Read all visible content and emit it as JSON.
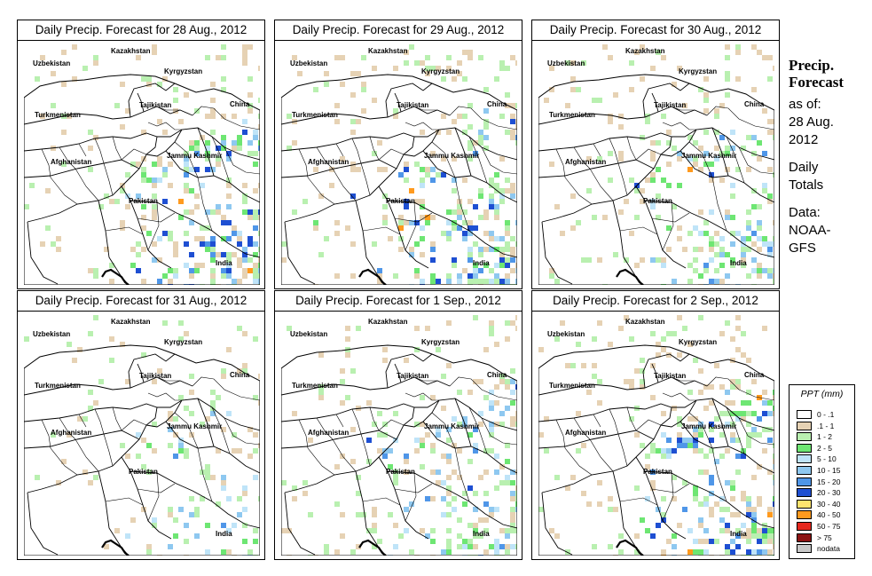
{
  "panels": [
    {
      "title": "Daily Precip. Forecast for  28 Aug., 2012",
      "rain_level": "wet"
    },
    {
      "title": "Daily Precip. Forecast for  29 Aug., 2012",
      "rain_level": "wet"
    },
    {
      "title": "Daily Precip. Forecast for  30 Aug., 2012",
      "rain_level": "medium"
    },
    {
      "title": "Daily Precip. Forecast for  31 Aug., 2012",
      "rain_level": "dry"
    },
    {
      "title": "Daily Precip. Forecast for  1 Sep., 2012",
      "rain_level": "medium"
    },
    {
      "title": "Daily Precip. Forecast for  2 Sep., 2012",
      "rain_level": "wet"
    }
  ],
  "map_labels": {
    "kazakhstan": "Kazakhstan",
    "uzbekistan": "Uzbekistan",
    "kyrgyzstan": "Kyrgyzstan",
    "tajikistan": "Tajikistan",
    "china": "China",
    "turkmenistan": "Turkmenistan",
    "afghanistan": "Afghanistan",
    "jammu_kashmir": "Jammu Kashmir",
    "pakistan": "Pakistan",
    "india": "India"
  },
  "sidebar": {
    "heading_line1": "Precip.",
    "heading_line2": "Forecast",
    "asof": "as of:",
    "date_line1": "28 Aug.",
    "date_line2": "2012",
    "daily": "Daily",
    "totals": "Totals",
    "data_label": "Data:",
    "source_line1": "NOAA-",
    "source_line2": "GFS"
  },
  "legend": {
    "title": "PPT (mm)",
    "items": [
      {
        "label": "0 - .1",
        "color": "#ffffff"
      },
      {
        "label": ".1 - 1",
        "color": "#e6d2b4"
      },
      {
        "label": "1 - 2",
        "color": "#b9f0b0"
      },
      {
        "label": "2 - 5",
        "color": "#6ee673"
      },
      {
        "label": "5 - 10",
        "color": "#bfe4f8"
      },
      {
        "label": "10 - 15",
        "color": "#8ec8f0"
      },
      {
        "label": "15 - 20",
        "color": "#4f96e8"
      },
      {
        "label": "20 - 30",
        "color": "#1e4fd2"
      },
      {
        "label": "30 - 40",
        "color": "#ffe46e"
      },
      {
        "label": "40 - 50",
        "color": "#ff9a1e"
      },
      {
        "label": "50 - 75",
        "color": "#e6281e"
      },
      {
        "label": "> 75",
        "color": "#8c1414"
      },
      {
        "label": "nodata",
        "color": "#c8c8c8"
      }
    ]
  }
}
